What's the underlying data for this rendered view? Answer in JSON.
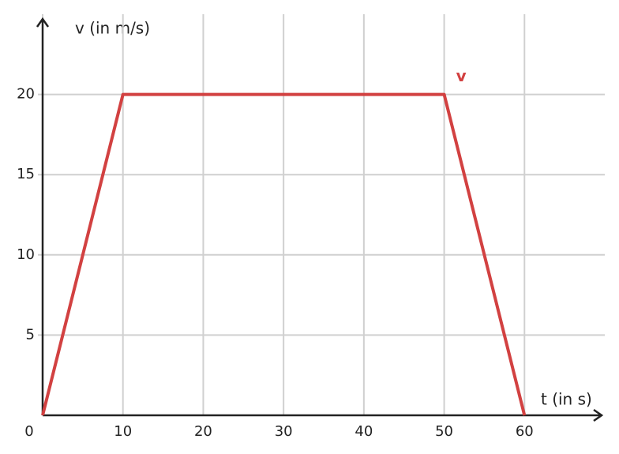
{
  "chart_data": {
    "type": "line",
    "x_label": "t (in s)",
    "y_label": "v (in m/s)",
    "x": [
      0,
      10,
      50,
      60
    ],
    "series": [
      {
        "name": "v",
        "color": "#d24141",
        "values": [
          0,
          20,
          20,
          0
        ]
      }
    ],
    "xlim": [
      0,
      70
    ],
    "ylim": [
      0,
      25
    ],
    "xticks": [
      0,
      10,
      20,
      30,
      40,
      50,
      60
    ],
    "yticks": [
      5,
      10,
      15,
      20
    ],
    "grid": true
  }
}
